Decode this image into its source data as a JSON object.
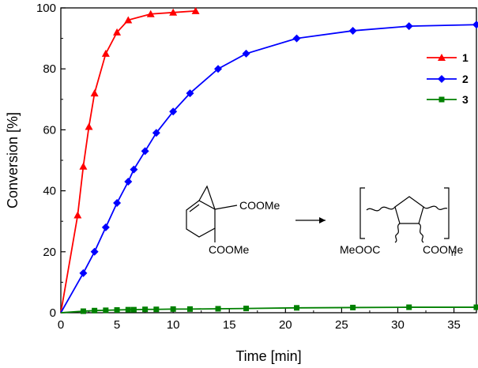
{
  "chart_data": {
    "type": "line",
    "xlabel": "Time [min]",
    "ylabel": "Conversion [%]",
    "xlim": [
      0,
      37
    ],
    "ylim": [
      0,
      100
    ],
    "xticks": [
      0,
      5,
      10,
      15,
      20,
      25,
      30,
      35
    ],
    "yticks": [
      0,
      20,
      40,
      60,
      80,
      100
    ],
    "grid": false,
    "legend_position": "top-right",
    "series": [
      {
        "name": "1",
        "color": "#ff0000",
        "marker": "triangle",
        "x": [
          0,
          1.5,
          2,
          2.5,
          3,
          4,
          5,
          6,
          8,
          10,
          12
        ],
        "y": [
          0,
          32,
          48,
          61,
          72,
          85,
          92,
          96,
          98,
          98.5,
          99
        ]
      },
      {
        "name": "2",
        "color": "#0000ff",
        "marker": "diamond",
        "x": [
          0,
          2,
          3,
          4,
          5,
          6,
          6.5,
          7.5,
          8.5,
          10,
          11.5,
          14,
          16.5,
          21,
          26,
          31,
          37
        ],
        "y": [
          0,
          13,
          20,
          28,
          36,
          43,
          47,
          53,
          59,
          66,
          72,
          80,
          85,
          90,
          92.5,
          94,
          94.5
        ]
      },
      {
        "name": "3",
        "color": "#008000",
        "marker": "square",
        "x": [
          0,
          2,
          3,
          4,
          5,
          6,
          6.5,
          7.5,
          8.5,
          10,
          11.5,
          14,
          16.5,
          21,
          26,
          31,
          37
        ],
        "y": [
          0,
          0.5,
          0.7,
          0.8,
          0.9,
          1.0,
          1.0,
          1.1,
          1.1,
          1.2,
          1.2,
          1.3,
          1.4,
          1.6,
          1.7,
          1.8,
          1.8
        ]
      }
    ],
    "annotations": {
      "monomer_ester_top": "COOMe",
      "monomer_ester_bottom": "COOMe",
      "polymer_subscript": "n",
      "polymer_ester_left": "MeOOC",
      "polymer_ester_right": "COOMe"
    }
  }
}
